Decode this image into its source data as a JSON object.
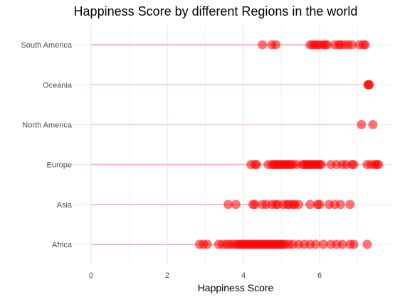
{
  "chart_data": {
    "type": "scatter",
    "title": "Happiness Score by different Regions in the world",
    "xlabel": "Happiness Score",
    "ylabel": "",
    "xlim": [
      0,
      7.8
    ],
    "xticks": [
      0,
      2,
      4,
      6
    ],
    "grid": true,
    "legend": "none",
    "point_color": "#ff0000",
    "segment_color": "#ffb6c1",
    "categories": [
      "South America",
      "Oceania",
      "North America",
      "Europe",
      "Asia",
      "Africa"
    ],
    "series": [
      {
        "category": "South America",
        "values": [
          4.5,
          4.75,
          4.85,
          5.75,
          5.82,
          5.88,
          5.95,
          6.0,
          6.1,
          6.15,
          6.2,
          6.4,
          6.5,
          6.55,
          6.65,
          6.75,
          6.85,
          7.05,
          7.15,
          7.2
        ]
      },
      {
        "category": "Oceania",
        "values": [
          7.27,
          7.29,
          7.31
        ]
      },
      {
        "category": "North America",
        "values": [
          7.1,
          7.4
        ]
      },
      {
        "category": "Europe",
        "values": [
          4.2,
          4.3,
          4.35,
          4.65,
          4.75,
          4.8,
          4.85,
          4.9,
          4.95,
          5.0,
          5.05,
          5.1,
          5.15,
          5.2,
          5.25,
          5.3,
          5.4,
          5.55,
          5.6,
          5.65,
          5.7,
          5.75,
          5.8,
          5.85,
          5.9,
          5.95,
          6.0,
          6.05,
          6.3,
          6.45,
          6.6,
          6.7,
          6.85,
          6.9,
          7.25,
          7.35,
          7.45,
          7.5,
          7.55
        ]
      },
      {
        "category": "Asia",
        "values": [
          3.6,
          3.8,
          4.25,
          4.3,
          4.5,
          4.6,
          4.75,
          4.85,
          4.9,
          5.05,
          5.15,
          5.2,
          5.3,
          5.35,
          5.45,
          5.75,
          5.95,
          6.0,
          6.25,
          6.4,
          6.55,
          6.8
        ]
      },
      {
        "category": "Africa",
        "values": [
          2.85,
          2.95,
          3.05,
          3.35,
          3.45,
          3.55,
          3.62,
          3.7,
          3.78,
          3.85,
          3.9,
          3.95,
          4.0,
          4.05,
          4.1,
          4.15,
          4.2,
          4.25,
          4.3,
          4.35,
          4.4,
          4.45,
          4.5,
          4.55,
          4.6,
          4.65,
          4.7,
          4.75,
          4.8,
          4.85,
          4.9,
          4.95,
          5.0,
          5.05,
          5.1,
          5.2,
          5.3,
          5.45,
          5.6,
          5.75,
          5.9,
          6.1,
          6.3,
          6.45,
          6.6,
          6.8,
          6.9,
          7.25
        ]
      }
    ]
  }
}
